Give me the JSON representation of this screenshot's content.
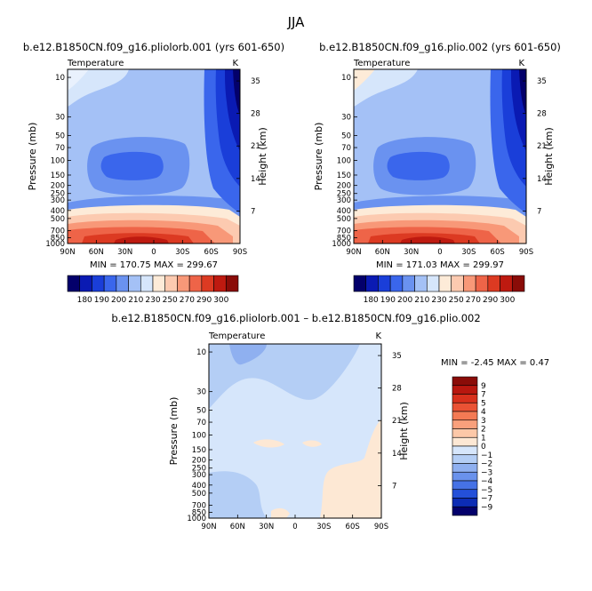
{
  "figure": {
    "title": "JJA"
  },
  "chart_data": [
    {
      "type": "heatmap",
      "title": "b.e12.B1850CN.f09_g16.pliolorb.001 (yrs 601-650)",
      "left_label": "Temperature",
      "right_label": "K",
      "xlabel": "",
      "ylabel": "Pressure (mb)",
      "y2label": "Height (km)",
      "x_ticks": [
        "90N",
        "60N",
        "30N",
        "0",
        "30S",
        "60S",
        "90S"
      ],
      "y_ticks": [
        "10",
        "30",
        "50",
        "70",
        "100",
        "150",
        "200",
        "250",
        "300",
        "400",
        "500",
        "700",
        "850",
        "1000"
      ],
      "height_ticks": [
        "35",
        "28",
        "21",
        "14",
        "7"
      ],
      "stats": "MIN = 170.75   MAX = 299.67",
      "colorbar_labels": [
        "180",
        "190",
        "200",
        "210",
        "230",
        "250",
        "270",
        "290",
        "300"
      ],
      "colorbar_colors": [
        "#03006b",
        "#0a1ab3",
        "#1a3ed9",
        "#3a66ec",
        "#6a92f0",
        "#a4c1f6",
        "#d6e6fb",
        "#fdebd8",
        "#fccab0",
        "#f89878",
        "#ee6448",
        "#dc3a22",
        "#be1a10",
        "#8a0c08"
      ]
    },
    {
      "type": "heatmap",
      "title": "b.e12.B1850CN.f09_g16.plio.002 (yrs 601-650)",
      "left_label": "Temperature",
      "right_label": "K",
      "xlabel": "",
      "ylabel": "Pressure (mb)",
      "y2label": "Height (km)",
      "x_ticks": [
        "90N",
        "60N",
        "30N",
        "0",
        "30S",
        "60S",
        "90S"
      ],
      "y_ticks": [
        "10",
        "30",
        "50",
        "70",
        "100",
        "150",
        "200",
        "250",
        "300",
        "400",
        "500",
        "700",
        "850",
        "1000"
      ],
      "height_ticks": [
        "35",
        "28",
        "21",
        "14",
        "7"
      ],
      "stats": "MIN = 171.03   MAX = 299.97",
      "colorbar_labels": [
        "180",
        "190",
        "200",
        "210",
        "230",
        "250",
        "270",
        "290",
        "300"
      ],
      "colorbar_colors": [
        "#03006b",
        "#0a1ab3",
        "#1a3ed9",
        "#3a66ec",
        "#6a92f0",
        "#a4c1f6",
        "#d6e6fb",
        "#fdebd8",
        "#fccab0",
        "#f89878",
        "#ee6448",
        "#dc3a22",
        "#be1a10",
        "#8a0c08"
      ]
    },
    {
      "type": "heatmap",
      "title": "b.e12.B1850CN.f09_g16.pliolorb.001 – b.e12.B1850CN.f09_g16.plio.002",
      "left_label": "Temperature",
      "right_label": "K",
      "xlabel": "",
      "ylabel": "Pressure (mb)",
      "y2label": "Height (km)",
      "x_ticks": [
        "90N",
        "60N",
        "30N",
        "0",
        "30S",
        "60S",
        "90S"
      ],
      "y_ticks": [
        "10",
        "30",
        "50",
        "70",
        "100",
        "150",
        "200",
        "250",
        "300",
        "400",
        "500",
        "700",
        "850",
        "1000"
      ],
      "height_ticks": [
        "35",
        "28",
        "21",
        "14",
        "7"
      ],
      "stats": "MIN =  -2.45   MAX =   0.47",
      "colorbar_labels": [
        "9",
        "7",
        "5",
        "4",
        "3",
        "2",
        "1",
        "0",
        "−1",
        "−2",
        "−3",
        "−4",
        "−5",
        "−7",
        "−9"
      ],
      "colorbar_colors": [
        "#8a0c08",
        "#b8170f",
        "#d8301c",
        "#ea5234",
        "#f47a54",
        "#f9a07c",
        "#fcc8a8",
        "#fde8d4",
        "#d6e6fb",
        "#b4cef5",
        "#8fb0f0",
        "#6a92ec",
        "#4672e6",
        "#2450d9",
        "#0c2cb4",
        "#03006b"
      ]
    }
  ]
}
